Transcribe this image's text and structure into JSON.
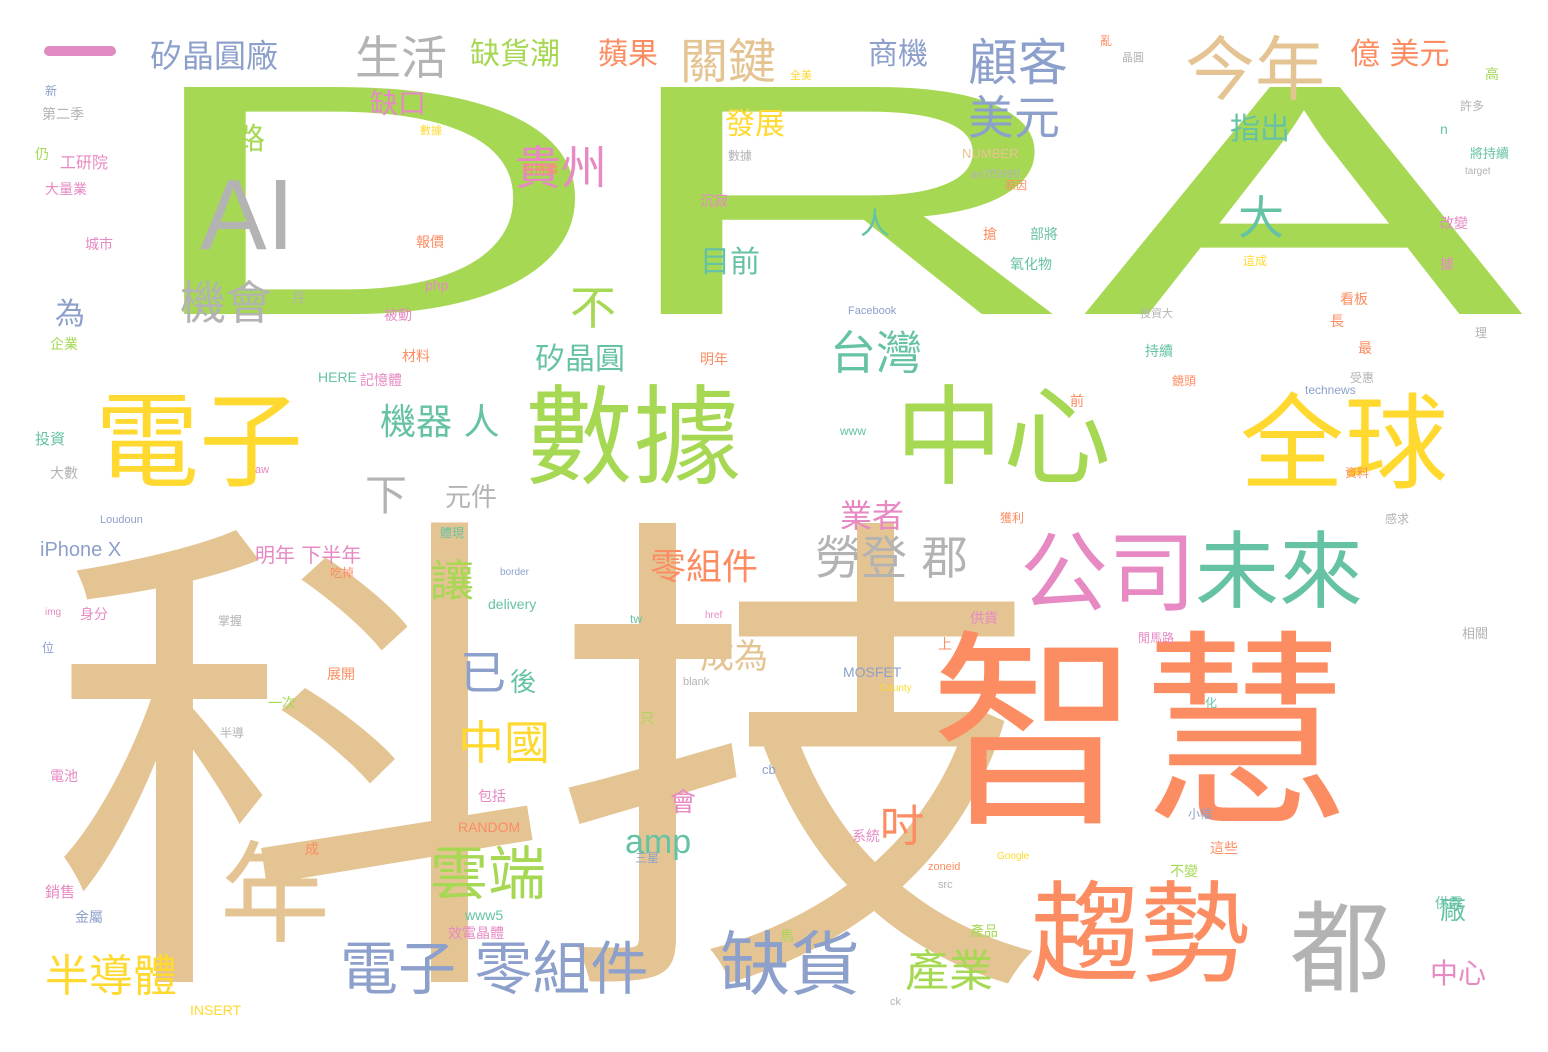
{
  "colors": {
    "green": "#a6d854",
    "tan": "#e5c494",
    "orange": "#fc8d62",
    "yellow": "#ffd92f",
    "pink": "#e78ac3",
    "teal": "#66c2a5",
    "blue": "#8da0cb",
    "gray": "#b3b3b3"
  },
  "words": [
    {
      "text": "DRAM",
      "color": "green"
    },
    {
      "text": "科技",
      "color": "tan"
    },
    {
      "text": "智慧",
      "color": "orange"
    },
    {
      "text": "數據",
      "color": "green"
    },
    {
      "text": "中心",
      "color": "green"
    },
    {
      "text": "電子",
      "color": "yellow"
    },
    {
      "text": "全球",
      "color": "yellow"
    },
    {
      "text": "趨勢",
      "color": "orange"
    },
    {
      "text": "公司",
      "color": "pink"
    },
    {
      "text": "未來",
      "color": "teal"
    },
    {
      "text": "AI",
      "color": "gray"
    },
    {
      "text": "今年",
      "color": "tan"
    },
    {
      "text": "年",
      "color": "tan"
    },
    {
      "text": "都",
      "color": "gray"
    },
    {
      "text": "缺貨",
      "color": "blue"
    },
    {
      "text": "電子 零組件",
      "color": "blue"
    },
    {
      "text": "雲端",
      "color": "green"
    },
    {
      "text": "台灣",
      "color": "teal"
    },
    {
      "text": "勞登 郡",
      "color": "gray"
    },
    {
      "text": "機會",
      "color": "gray"
    },
    {
      "text": "生活",
      "color": "gray"
    },
    {
      "text": "關鍵",
      "color": "tan"
    },
    {
      "text": "顧客",
      "color": "blue"
    },
    {
      "text": "美元",
      "color": "blue"
    },
    {
      "text": "大",
      "color": "teal"
    },
    {
      "text": "不",
      "color": "green"
    },
    {
      "text": "貴州",
      "color": "pink"
    },
    {
      "text": "中國",
      "color": "yellow"
    },
    {
      "text": "已",
      "color": "blue"
    },
    {
      "text": "半導體",
      "color": "yellow"
    },
    {
      "text": "產業",
      "color": "green"
    },
    {
      "text": "吋",
      "color": "orange"
    },
    {
      "text": "讓",
      "color": "green"
    },
    {
      "text": "下",
      "color": "gray"
    },
    {
      "text": "機器 人",
      "color": "teal"
    },
    {
      "text": "零組件",
      "color": "orange"
    },
    {
      "text": "成為",
      "color": "tan"
    },
    {
      "text": "amp",
      "color": "teal"
    },
    {
      "text": "業者",
      "color": "pink"
    },
    {
      "text": "矽晶圓廠",
      "color": "blue"
    },
    {
      "text": "缺貨潮",
      "color": "green"
    },
    {
      "text": "蘋果",
      "color": "orange"
    },
    {
      "text": "商機",
      "color": "blue"
    },
    {
      "text": "億 美元",
      "color": "orange"
    },
    {
      "text": "缺口",
      "color": "pink"
    },
    {
      "text": "網路",
      "color": "green"
    },
    {
      "text": "發展",
      "color": "yellow"
    },
    {
      "text": "指出",
      "color": "teal"
    },
    {
      "text": "目前",
      "color": "teal"
    },
    {
      "text": "人",
      "color": "teal"
    },
    {
      "text": "為",
      "color": "blue"
    },
    {
      "text": "矽晶圓",
      "color": "teal"
    },
    {
      "text": "元件",
      "color": "gray"
    },
    {
      "text": "後",
      "color": "teal"
    },
    {
      "text": "會",
      "color": "pink"
    },
    {
      "text": "廠",
      "color": "teal"
    },
    {
      "text": "中心",
      "color": "pink"
    },
    {
      "text": "明年 下半年",
      "color": "pink"
    },
    {
      "text": "iPhone X",
      "color": "blue"
    },
    {
      "text": "工研院",
      "color": "pink"
    },
    {
      "text": "大量業",
      "color": "pink"
    },
    {
      "text": "城市",
      "color": "pink"
    },
    {
      "text": "企業",
      "color": "green"
    },
    {
      "text": "投資",
      "color": "teal"
    },
    {
      "text": "大數",
      "color": "gray"
    },
    {
      "text": "身分",
      "color": "pink"
    },
    {
      "text": "電池",
      "color": "pink"
    },
    {
      "text": "銷售",
      "color": "pink"
    },
    {
      "text": "金屬",
      "color": "blue"
    },
    {
      "text": "第二季",
      "color": "gray"
    },
    {
      "text": "材料",
      "color": "orange"
    },
    {
      "text": "記憶體",
      "color": "pink"
    },
    {
      "text": "被動",
      "color": "pink"
    },
    {
      "text": "報價",
      "color": "orange"
    },
    {
      "text": "可持續",
      "color": "orange"
    },
    {
      "text": "沉寂",
      "color": "pink"
    },
    {
      "text": "明年",
      "color": "orange"
    },
    {
      "text": "NUMBER",
      "color": "tan"
    },
    {
      "text": "ae7f5990",
      "color": "gray"
    },
    {
      "text": "數據",
      "color": "gray"
    },
    {
      "text": "部將",
      "color": "teal"
    },
    {
      "text": "氧化物",
      "color": "teal"
    },
    {
      "text": "持續",
      "color": "teal"
    },
    {
      "text": "鏡頭",
      "color": "orange"
    },
    {
      "text": "看板",
      "color": "orange"
    },
    {
      "text": "資料",
      "color": "orange"
    },
    {
      "text": "許多",
      "color": "gray"
    },
    {
      "text": "將持續",
      "color": "teal"
    },
    {
      "text": "改變",
      "color": "pink"
    },
    {
      "text": "供需",
      "color": "teal"
    },
    {
      "text": "相關",
      "color": "gray"
    },
    {
      "text": "供貨",
      "color": "pink"
    },
    {
      "text": "閒馬路",
      "color": "pink"
    },
    {
      "text": "MOSFET",
      "color": "blue"
    },
    {
      "text": "RANDOM",
      "color": "orange"
    },
    {
      "text": "HERE",
      "color": "teal"
    },
    {
      "text": "INSERT",
      "color": "yellow"
    },
    {
      "text": "系統",
      "color": "pink"
    },
    {
      "text": "產品",
      "color": "green"
    },
    {
      "text": "小幅",
      "color": "blue"
    },
    {
      "text": "這些",
      "color": "orange"
    },
    {
      "text": "不變",
      "color": "green"
    },
    {
      "text": "效電晶體",
      "color": "pink"
    },
    {
      "text": "包括",
      "color": "pink"
    },
    {
      "text": "www5",
      "color": "teal"
    },
    {
      "text": "delivery",
      "color": "teal"
    },
    {
      "text": "php",
      "color": "pink"
    },
    {
      "text": "一次",
      "color": "green"
    },
    {
      "text": "半導",
      "color": "gray"
    },
    {
      "text": "展開",
      "color": "orange"
    },
    {
      "text": "掌握",
      "color": "gray"
    },
    {
      "text": "吃掉",
      "color": "orange"
    },
    {
      "text": "體現",
      "color": "teal"
    },
    {
      "text": "technews",
      "color": "blue"
    },
    {
      "text": "Facebook",
      "color": "blue"
    },
    {
      "text": "Loudoun",
      "color": "blue"
    },
    {
      "text": "獲利",
      "color": "orange"
    },
    {
      "text": "這成",
      "color": "yellow"
    },
    {
      "text": "受惠",
      "color": "gray"
    },
    {
      "text": "理",
      "color": "gray"
    },
    {
      "text": "感求",
      "color": "gray"
    },
    {
      "text": "只",
      "color": "green"
    },
    {
      "text": "三星",
      "color": "blue"
    },
    {
      "text": "成",
      "color": "orange"
    },
    {
      "text": "化",
      "color": "teal"
    },
    {
      "text": "上",
      "color": "orange"
    },
    {
      "text": "長",
      "color": "orange"
    },
    {
      "text": "最",
      "color": "orange"
    },
    {
      "text": "高",
      "color": "green"
    },
    {
      "text": "n",
      "color": "teal"
    },
    {
      "text": "馬",
      "color": "green"
    },
    {
      "text": "cb",
      "color": "blue"
    },
    {
      "text": "月",
      "color": "gray"
    },
    {
      "text": "新",
      "color": "blue"
    },
    {
      "text": "仍",
      "color": "green"
    },
    {
      "text": "位",
      "color": "blue"
    },
    {
      "text": "前",
      "color": "orange"
    },
    {
      "text": "搶",
      "color": "orange"
    },
    {
      "text": "據",
      "color": "pink"
    },
    {
      "text": "亂",
      "color": "orange"
    },
    {
      "text": "晶圓",
      "color": "gray"
    },
    {
      "text": "全美",
      "color": "yellow"
    },
    {
      "text": "數據",
      "color": "yellow"
    },
    {
      "text": "原因",
      "color": "orange"
    },
    {
      "text": "投資大",
      "color": "gray"
    },
    {
      "text": "www",
      "color": "teal"
    },
    {
      "text": "tw",
      "color": "teal"
    },
    {
      "text": "zoneid",
      "color": "orange"
    },
    {
      "text": "src",
      "color": "gray"
    },
    {
      "text": "Google",
      "color": "yellow"
    },
    {
      "text": "blank",
      "color": "gray"
    },
    {
      "text": "County",
      "color": "yellow"
    },
    {
      "text": "border",
      "color": "blue"
    },
    {
      "text": "img",
      "color": "pink"
    },
    {
      "text": "target",
      "color": "gray"
    },
    {
      "text": "ck",
      "color": "gray"
    },
    {
      "text": "aw",
      "color": "pink"
    },
    {
      "text": "href",
      "color": "pink"
    }
  ]
}
